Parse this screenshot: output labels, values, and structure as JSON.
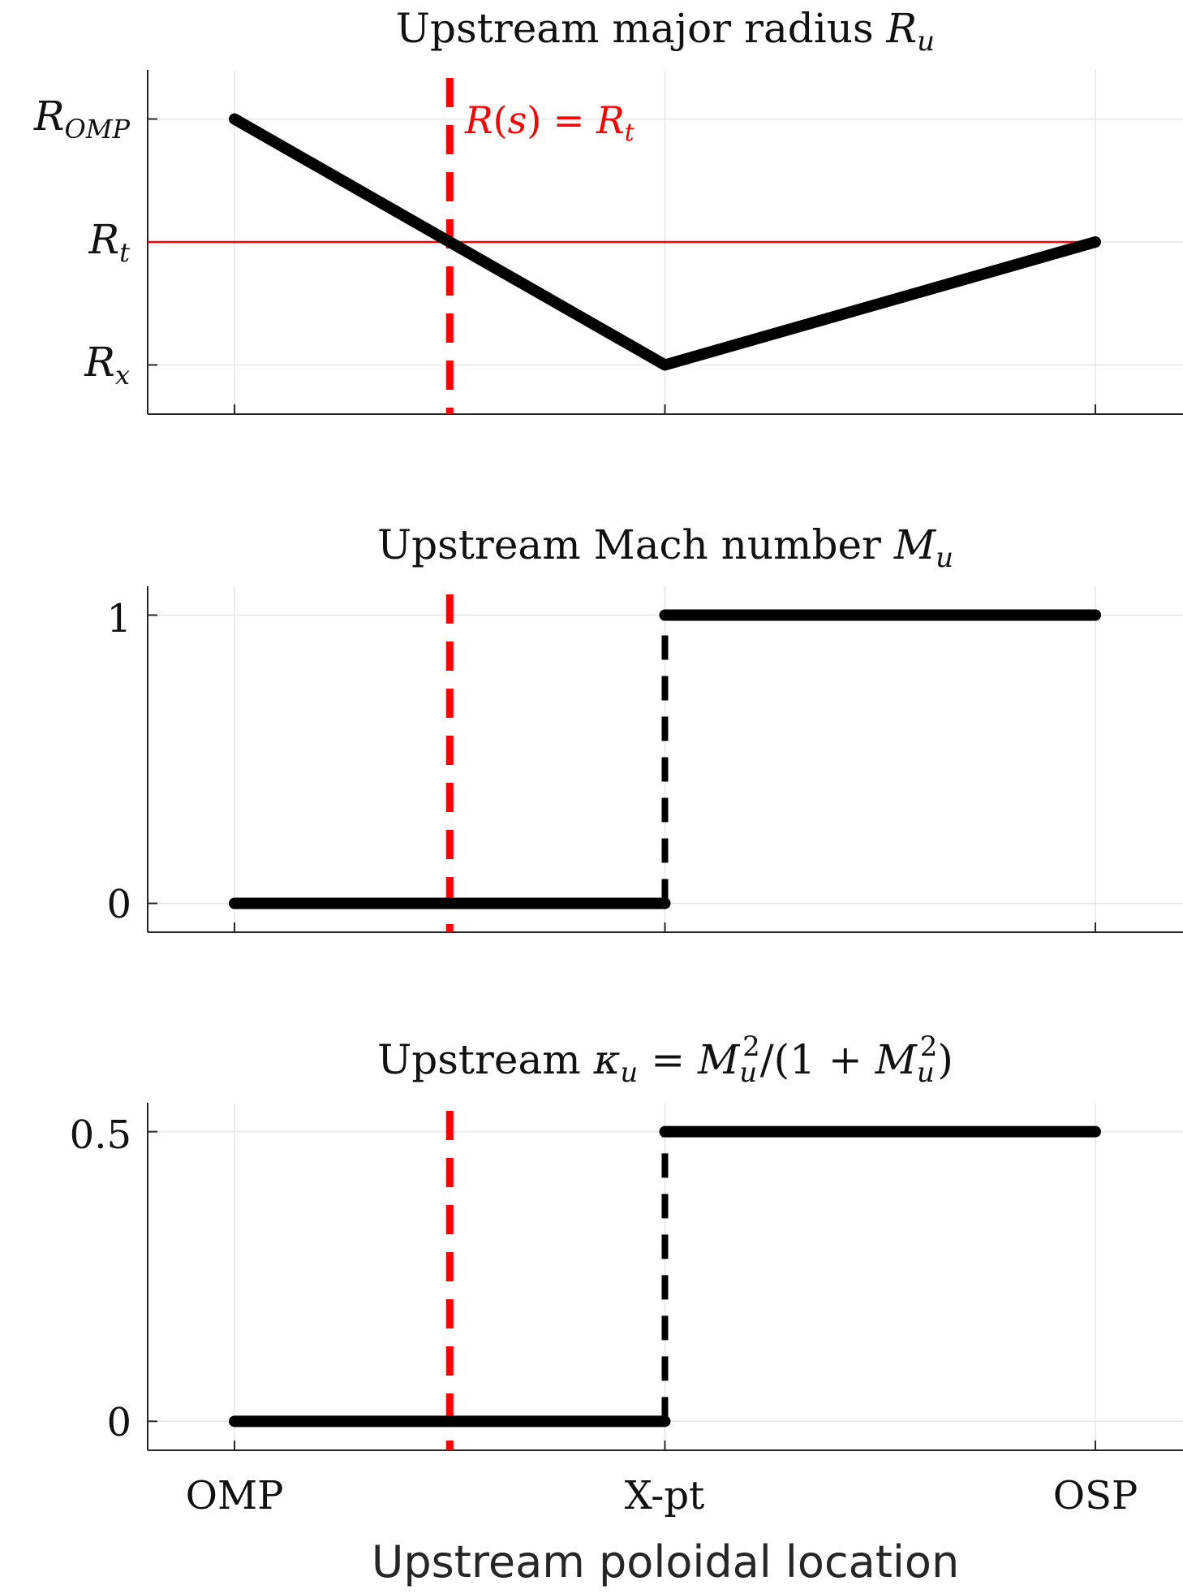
{
  "x_axis": {
    "label": "Upstream poloidal location",
    "ticks": [
      "OMP",
      "X-pt",
      "OSP"
    ],
    "positions": [
      0,
      1,
      2
    ]
  },
  "colors": {
    "black": "#000000",
    "red": "#ff0000",
    "grid": "#e6e6e6",
    "axis": "#262626"
  },
  "chart_data": [
    {
      "type": "line",
      "title": "Upstream major radius R_u",
      "title_text": "Upstream major radius ",
      "title_math": {
        "base": "R",
        "sub": "u"
      },
      "ylim": [
        -0.2,
        1.2
      ],
      "yticks": [
        {
          "value": 1.0,
          "base": "R",
          "sub": "OMP"
        },
        {
          "value": 0.5,
          "base": "R",
          "sub": "t"
        },
        {
          "value": 0.0,
          "base": "R",
          "sub": "x"
        }
      ],
      "series": [
        {
          "x": [
            0,
            1,
            2
          ],
          "y": [
            1.0,
            0.0,
            0.5
          ],
          "color": "#000000",
          "style": "solid-thick"
        }
      ],
      "hline": {
        "y": 0.5,
        "color": "#ff0000"
      },
      "vline": {
        "x": 0.5,
        "color": "#ff0000",
        "style": "dashed"
      },
      "annotation": {
        "text": "R(s) = R_t",
        "x": 0.5,
        "y": 1.0
      }
    },
    {
      "type": "line",
      "title": "Upstream Mach number M_u",
      "title_text": "Upstream Mach number ",
      "title_math": {
        "base": "M",
        "sub": "u"
      },
      "ylim": [
        -0.1,
        1.1
      ],
      "yticks": [
        {
          "value": 1,
          "label": "1"
        },
        {
          "value": 0,
          "label": "0"
        }
      ],
      "series": [
        {
          "x": [
            0,
            1
          ],
          "y": [
            0,
            0
          ],
          "color": "#000000",
          "style": "solid-thick"
        },
        {
          "x": [
            1,
            2
          ],
          "y": [
            1,
            1
          ],
          "color": "#000000",
          "style": "solid-thick"
        },
        {
          "x": [
            1,
            1
          ],
          "y": [
            0,
            1
          ],
          "color": "#000000",
          "style": "dashed"
        }
      ],
      "vline": {
        "x": 0.5,
        "color": "#ff0000",
        "style": "dashed"
      }
    },
    {
      "type": "line",
      "title": "Upstream κ_u = M_u²/(1 + M_u²)",
      "ylim": [
        -0.05,
        0.55
      ],
      "yticks": [
        {
          "value": 0.5,
          "label": "0.5"
        },
        {
          "value": 0,
          "label": "0"
        }
      ],
      "series": [
        {
          "x": [
            0,
            1
          ],
          "y": [
            0,
            0
          ],
          "color": "#000000",
          "style": "solid-thick"
        },
        {
          "x": [
            1,
            2
          ],
          "y": [
            0.5,
            0.5
          ],
          "color": "#000000",
          "style": "solid-thick"
        },
        {
          "x": [
            1,
            1
          ],
          "y": [
            0,
            0.5
          ],
          "color": "#000000",
          "style": "dashed"
        }
      ],
      "vline": {
        "x": 0.5,
        "color": "#ff0000",
        "style": "dashed"
      }
    }
  ]
}
